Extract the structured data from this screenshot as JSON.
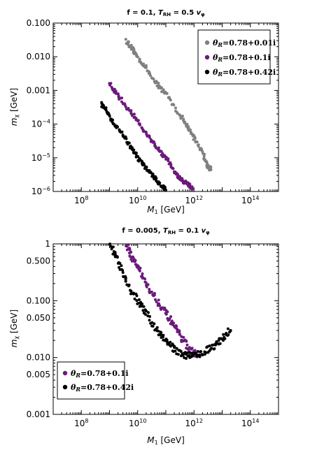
{
  "chart_data": [
    {
      "type": "scatter",
      "title": "f = 0.1, T_RH = 0.5 v_φ",
      "title_parts": {
        "prefix": "f = 0.1, ",
        "T": "T",
        "sub": "RH",
        "mid": " = 0.5 ",
        "v": "v",
        "vsub": "φ"
      },
      "xlabel": {
        "M": "M",
        "sub": "1",
        "unit": " [GeV]"
      },
      "ylabel": {
        "m": "m",
        "sub": "χ",
        "unit": " [GeV]"
      },
      "x_scale": "log",
      "y_scale": "log",
      "xlim": [
        10000000.0,
        1000000000000000.0
      ],
      "ylim": [
        1e-06,
        0.1
      ],
      "x_ticks": [
        {
          "value": 100000000.0,
          "exp": "8"
        },
        {
          "value": 10000000000.0,
          "exp": "10"
        },
        {
          "value": 1000000000000.0,
          "exp": "12"
        },
        {
          "value": 100000000000000.0,
          "exp": "14"
        }
      ],
      "y_ticks": [
        {
          "value": 1e-06,
          "base": "10",
          "exp": "−6"
        },
        {
          "value": 1e-05,
          "base": "10",
          "exp": "−5"
        },
        {
          "value": 0.0001,
          "base": "10",
          "exp": "−4"
        },
        {
          "value": 0.001,
          "base": "0.001",
          "exp": ""
        },
        {
          "value": 0.01,
          "base": "0.010",
          "exp": ""
        },
        {
          "value": 0.1,
          "base": "0.100",
          "exp": ""
        }
      ],
      "legend_position": "top-right",
      "series": [
        {
          "name": "θR=0.78+0.01i",
          "label": {
            "theta": "θ",
            "sub": "R",
            "text": "=0.78+0.01i"
          },
          "color": "#808080",
          "points": [
            [
              4000000000.0,
              0.03
            ],
            [
              6000000000.0,
              0.018
            ],
            [
              10000000000.0,
              0.01
            ],
            [
              20000000000.0,
              0.0045
            ],
            [
              50000000000.0,
              0.0015
            ],
            [
              100000000000.0,
              0.0008
            ],
            [
              300000000000.0,
              0.0002
            ],
            [
              600000000000.0,
              8e-05
            ],
            [
              1000000000000.0,
              4e-05
            ],
            [
              2000000000000.0,
              1.5e-05
            ],
            [
              3000000000000.0,
              6e-06
            ],
            [
              4000000000000.0,
              4.5e-06
            ]
          ]
        },
        {
          "name": "θR=0.78+0.1i",
          "label": {
            "theta": "θ",
            "sub": "R",
            "text": "=0.78+0.1i"
          },
          "color": "#6b1a7a",
          "points": [
            [
              1000000000.0,
              0.0015
            ],
            [
              2000000000.0,
              0.0007
            ],
            [
              5000000000.0,
              0.00025
            ],
            [
              10000000000.0,
              0.00013
            ],
            [
              20000000000.0,
              5e-05
            ],
            [
              50000000000.0,
              2e-05
            ],
            [
              100000000000.0,
              1e-05
            ],
            [
              200000000000.0,
              4e-06
            ],
            [
              300000000000.0,
              2.5e-06
            ],
            [
              400000000000.0,
              2e-06
            ],
            [
              600000000000.0,
              1.6e-06
            ],
            [
              900000000000.0,
              1.2e-06
            ]
          ]
        },
        {
          "name": "θR=0.78+0.42i",
          "label": {
            "theta": "θ",
            "sub": "R",
            "text": "=0.78+0.42i"
          },
          "color": "#000000",
          "points": [
            [
              500000000.0,
              0.0004
            ],
            [
              800000000.0,
              0.00025
            ],
            [
              1500000000.0,
              0.0001
            ],
            [
              3000000000.0,
              5e-05
            ],
            [
              6000000000.0,
              2e-05
            ],
            [
              10000000000.0,
              1e-05
            ],
            [
              20000000000.0,
              5e-06
            ],
            [
              40000000000.0,
              2.5e-06
            ],
            [
              70000000000.0,
              1.5e-06
            ],
            [
              100000000000.0,
              1.1e-06
            ]
          ]
        }
      ]
    },
    {
      "type": "scatter",
      "title": "f = 0.005, T_RH = 0.1 v_φ",
      "title_parts": {
        "prefix": "f = 0.005, ",
        "T": "T",
        "sub": "RH",
        "mid": " = 0.1 ",
        "v": "v",
        "vsub": "φ"
      },
      "xlabel": {
        "M": "M",
        "sub": "1",
        "unit": " [GeV]"
      },
      "ylabel": {
        "m": "m",
        "sub": "χ",
        "unit": " [GeV]"
      },
      "x_scale": "log",
      "y_scale": "log",
      "xlim": [
        10000000.0,
        1000000000000000.0
      ],
      "ylim": [
        0.001,
        1
      ],
      "x_ticks": [
        {
          "value": 100000000.0,
          "exp": "8"
        },
        {
          "value": 10000000000.0,
          "exp": "10"
        },
        {
          "value": 1000000000000.0,
          "exp": "12"
        },
        {
          "value": 100000000000000.0,
          "exp": "14"
        }
      ],
      "y_ticks": [
        {
          "value": 0.001,
          "base": "0.001",
          "exp": ""
        },
        {
          "value": 0.005,
          "base": "0.005",
          "exp": ""
        },
        {
          "value": 0.01,
          "base": "0.010",
          "exp": ""
        },
        {
          "value": 0.05,
          "base": "0.050",
          "exp": ""
        },
        {
          "value": 0.1,
          "base": "0.100",
          "exp": ""
        },
        {
          "value": 0.5,
          "base": "0.500",
          "exp": ""
        },
        {
          "value": 1,
          "base": "1",
          "exp": ""
        }
      ],
      "legend_position": "bottom-left",
      "series": [
        {
          "name": "θR=0.78+0.1i",
          "label": {
            "theta": "θ",
            "sub": "R",
            "text": "=0.78+0.1i"
          },
          "color": "#6b1a7a",
          "points": [
            [
              4000000000.0,
              1.0
            ],
            [
              6000000000.0,
              0.6
            ],
            [
              10000000000.0,
              0.4
            ],
            [
              20000000000.0,
              0.2
            ],
            [
              50000000000.0,
              0.1
            ],
            [
              100000000000.0,
              0.06
            ],
            [
              200000000000.0,
              0.035
            ],
            [
              400000000000.0,
              0.02
            ],
            [
              800000000000.0,
              0.013
            ],
            [
              1200000000000.0,
              0.011
            ]
          ]
        },
        {
          "name": "θR=0.78+0.42i",
          "label": {
            "theta": "θ",
            "sub": "R",
            "text": "=0.78+0.42i"
          },
          "color": "#000000",
          "points": [
            [
              1000000000.0,
              1.0
            ],
            [
              2000000000.0,
              0.5
            ],
            [
              4000000000.0,
              0.2
            ],
            [
              10000000000.0,
              0.1
            ],
            [
              20000000000.0,
              0.06
            ],
            [
              50000000000.0,
              0.03
            ],
            [
              100000000000.0,
              0.02
            ],
            [
              200000000000.0,
              0.014
            ],
            [
              500000000000.0,
              0.011
            ],
            [
              1000000000000.0,
              0.011
            ],
            [
              2000000000000.0,
              0.012
            ],
            [
              5000000000000.0,
              0.016
            ],
            [
              10000000000000.0,
              0.022
            ],
            [
              20000000000000.0,
              0.03
            ]
          ]
        }
      ]
    }
  ]
}
